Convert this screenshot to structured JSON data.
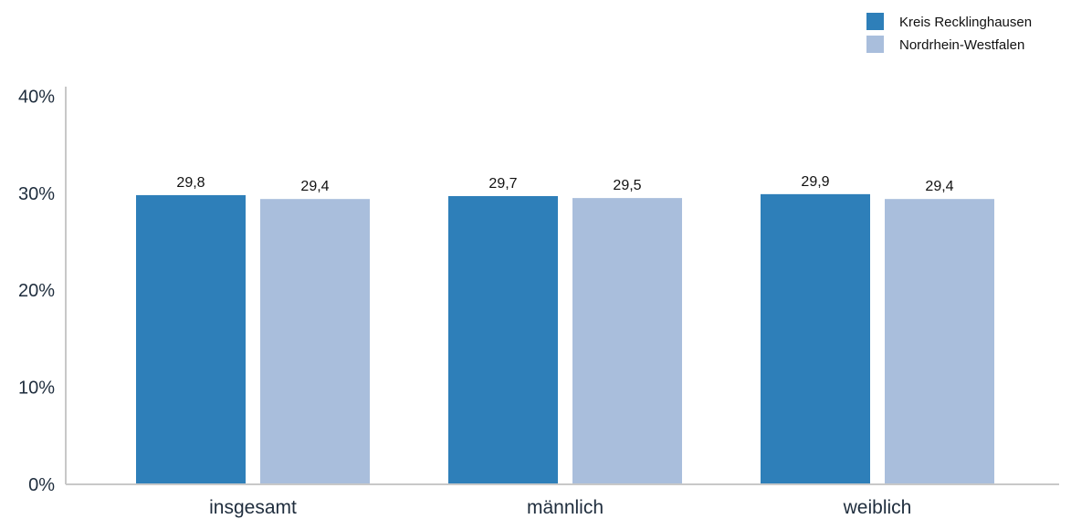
{
  "chart_data": {
    "type": "bar",
    "categories": [
      "insgesamt",
      "männlich",
      "weiblich"
    ],
    "series": [
      {
        "name": "Kreis Recklinghausen",
        "values": [
          29.8,
          29.7,
          29.9
        ],
        "labels": [
          "29,8",
          "29,7",
          "29,9"
        ],
        "color": "#2e7fb9"
      },
      {
        "name": "Nordrhein-Westfalen",
        "values": [
          29.4,
          29.5,
          29.4
        ],
        "labels": [
          "29,4",
          "29,5",
          "29,4"
        ],
        "color": "#a9bedc"
      }
    ],
    "y_ticks": [
      {
        "value": 0,
        "label": "0%"
      },
      {
        "value": 10,
        "label": "10%"
      },
      {
        "value": 20,
        "label": "20%"
      },
      {
        "value": 30,
        "label": "30%"
      },
      {
        "value": 40,
        "label": "40%"
      }
    ],
    "ylim": [
      0,
      40
    ],
    "grid": false,
    "legend": "top-right",
    "axis_color": "#c8c8c8",
    "text_color": "#1f2d3d"
  }
}
